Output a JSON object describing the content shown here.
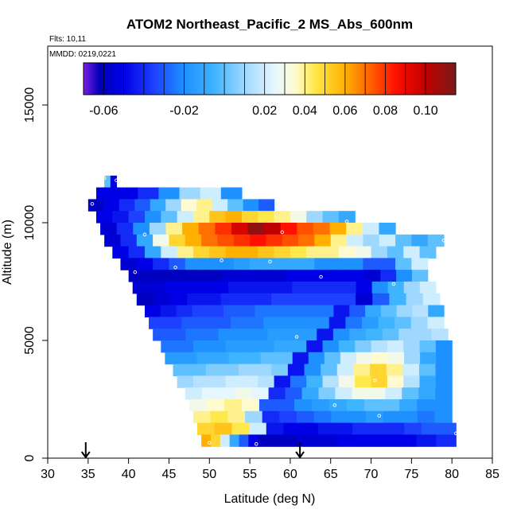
{
  "chart_data": {
    "type": "heatmap",
    "title": "ATOM2 Northeast_Pacific_2 MS_Abs_600nm",
    "flights_label": "Flts: 10,11",
    "dates_label": "MMDD: 0219,0221",
    "xlabel": "Latitude (deg N)",
    "ylabel": "Altitude (m)",
    "xlim": [
      30,
      85
    ],
    "ylim": [
      0,
      17500
    ],
    "x_ticks": [
      30,
      35,
      40,
      45,
      50,
      55,
      60,
      65,
      70,
      75,
      80,
      85
    ],
    "y_ticks": [
      0,
      5000,
      10000,
      15000
    ],
    "grid": false,
    "colorbar": {
      "range": [
        -0.07,
        0.115
      ],
      "tick_values": [
        -0.06,
        -0.02,
        0.02,
        0.04,
        0.06,
        0.08,
        0.1
      ],
      "tick_labels": [
        "-0.06",
        "-0.02",
        "0.02",
        "0.04",
        "0.06",
        "0.08",
        "0.10"
      ],
      "divider_values": [
        -0.05,
        -0.04,
        -0.03,
        -0.01,
        0.0,
        0.01,
        0.03,
        0.05,
        0.07,
        0.09
      ],
      "colors": [
        "#7a1fe0",
        "#0000b8",
        "#0000e6",
        "#1e40ff",
        "#1e90ff",
        "#3fb4ff",
        "#9fd8ff",
        "#e6f7ff",
        "#fffbd0",
        "#ffe84a",
        "#ffb000",
        "#ff7000",
        "#ff1000",
        "#c00000",
        "#7a1a1a"
      ],
      "color_stops": [
        -0.07,
        -0.062,
        -0.05,
        -0.035,
        -0.02,
        -0.005,
        0.01,
        0.025,
        0.035,
        0.045,
        0.06,
        0.07,
        0.085,
        0.1,
        0.115
      ],
      "placement": "top"
    },
    "arrows_x": [
      34.7,
      61.2
    ],
    "flight_legs": [
      {
        "x0": 37.0,
        "x1": 38.5,
        "y0": 11500,
        "y1": 12000,
        "values": [
          0.0,
          -0.05
        ]
      },
      {
        "x0": 36.0,
        "x1": 54.0,
        "y0": 11000,
        "y1": 11500,
        "values": [
          -0.05,
          -0.05,
          -0.04,
          -0.02,
          0.01,
          0.02,
          -0.02
        ]
      },
      {
        "x0": 35.0,
        "x1": 58.0,
        "y0": 10500,
        "y1": 11000,
        "values": [
          -0.06,
          -0.05,
          -0.04,
          -0.03,
          -0.01,
          0.01,
          0.035,
          0.04,
          0.02,
          0.0,
          -0.02,
          -0.03
        ]
      },
      {
        "x0": 36.0,
        "x1": 68.0,
        "y0": 10000,
        "y1": 10500,
        "values": [
          -0.05,
          -0.045,
          -0.035,
          -0.02,
          0.0,
          0.02,
          0.04,
          0.055,
          0.06,
          0.05,
          0.045,
          0.04,
          0.03,
          0.01,
          0.0,
          -0.01
        ]
      },
      {
        "x0": 36.5,
        "x1": 73.0,
        "y0": 9500,
        "y1": 10000,
        "values": [
          -0.055,
          -0.04,
          -0.02,
          0.01,
          0.04,
          0.06,
          0.07,
          0.08,
          0.095,
          0.11,
          0.1,
          0.085,
          0.075,
          0.07,
          0.06,
          0.04,
          0.02,
          -0.01
        ]
      },
      {
        "x0": 37.0,
        "x1": 79.0,
        "y0": 9000,
        "y1": 9500,
        "values": [
          -0.055,
          -0.04,
          -0.01,
          0.03,
          0.05,
          0.06,
          0.07,
          0.075,
          0.08,
          0.085,
          0.08,
          0.075,
          0.07,
          0.06,
          0.04,
          0.02,
          0.01,
          0.02,
          0.0,
          -0.01,
          0.0
        ]
      },
      {
        "x0": 38.0,
        "x1": 78.0,
        "y0": 8500,
        "y1": 9000,
        "values": [
          -0.05,
          -0.04,
          -0.01,
          0.02,
          0.04,
          0.05,
          0.055,
          0.06,
          0.06,
          0.055,
          0.05,
          0.045,
          0.04,
          0.04,
          0.035,
          0.03,
          0.01,
          0.0,
          0.02,
          0.0
        ]
      },
      {
        "x0": 39.0,
        "x1": 77.0,
        "y0": 8000,
        "y1": 8500,
        "values": [
          -0.055,
          -0.05,
          -0.04,
          -0.03,
          -0.02,
          -0.02,
          -0.02,
          -0.015,
          -0.01,
          -0.01,
          -0.01,
          -0.01,
          -0.02,
          -0.02,
          -0.02,
          -0.03,
          -0.03,
          0.0,
          0.02
        ]
      },
      {
        "x0": 40.0,
        "x1": 77.0,
        "y0": 7500,
        "y1": 8000,
        "values": [
          -0.06,
          -0.06,
          -0.06,
          -0.06,
          -0.06,
          -0.06,
          -0.055,
          -0.055,
          -0.055,
          -0.055,
          -0.05,
          -0.05,
          -0.05,
          -0.05,
          -0.05,
          -0.055,
          -0.04,
          -0.02,
          0.0
        ]
      },
      {
        "x0": 40.5,
        "x1": 78.0,
        "y0": 7000,
        "y1": 7500,
        "values": [
          -0.055,
          -0.055,
          -0.05,
          -0.05,
          -0.05,
          -0.05,
          -0.045,
          -0.045,
          -0.045,
          -0.045,
          -0.04,
          -0.04,
          -0.04,
          -0.04,
          -0.05,
          -0.02,
          -0.005,
          0.01,
          0.02
        ]
      },
      {
        "x0": 41.0,
        "x1": 78.5,
        "y0": 6500,
        "y1": 7000,
        "values": [
          -0.06,
          -0.055,
          -0.05,
          -0.045,
          -0.045,
          -0.04,
          -0.04,
          -0.04,
          -0.035,
          -0.035,
          -0.035,
          -0.035,
          -0.035,
          -0.055,
          -0.03,
          -0.005,
          0.01,
          0.02
        ]
      },
      {
        "x0": 42.0,
        "x1": 79.0,
        "y0": 6000,
        "y1": 6500,
        "values": [
          -0.05,
          -0.045,
          -0.04,
          -0.035,
          -0.035,
          -0.03,
          -0.03,
          -0.025,
          -0.025,
          -0.025,
          -0.025,
          -0.025,
          -0.045,
          -0.03,
          -0.01,
          0.0,
          0.01,
          0.015,
          -0.01
        ]
      },
      {
        "x0": 42.5,
        "x1": 79.0,
        "y0": 5500,
        "y1": 6000,
        "values": [
          -0.035,
          -0.035,
          -0.03,
          -0.03,
          -0.03,
          -0.025,
          -0.025,
          -0.02,
          -0.02,
          -0.02,
          -0.02,
          -0.045,
          -0.025,
          -0.015,
          -0.005,
          0.0,
          0.01,
          0.02
        ]
      },
      {
        "x0": 43.0,
        "x1": 79.5,
        "y0": 5000,
        "y1": 5500,
        "values": [
          -0.03,
          -0.03,
          -0.025,
          -0.025,
          -0.02,
          -0.02,
          -0.02,
          -0.015,
          -0.015,
          -0.015,
          -0.045,
          -0.02,
          -0.01,
          -0.005,
          0.0,
          0.01,
          0.01,
          0.015
        ]
      },
      {
        "x0": 44.0,
        "x1": 80.0,
        "y0": 4500,
        "y1": 5000,
        "values": [
          -0.025,
          -0.025,
          -0.02,
          -0.02,
          -0.015,
          -0.015,
          -0.015,
          -0.01,
          -0.01,
          -0.045,
          -0.02,
          -0.005,
          0.005,
          0.015,
          0.02,
          0.01,
          0.0,
          -0.02
        ]
      },
      {
        "x0": 44.5,
        "x1": 80.0,
        "y0": 4000,
        "y1": 4500,
        "values": [
          -0.015,
          -0.015,
          -0.01,
          -0.01,
          -0.005,
          -0.005,
          0.0,
          0.0,
          -0.045,
          -0.02,
          0.0,
          0.02,
          0.03,
          0.035,
          0.03,
          0.01,
          -0.01,
          -0.02
        ]
      },
      {
        "x0": 45.5,
        "x1": 80.0,
        "y0": 3500,
        "y1": 4000,
        "values": [
          0.0,
          0.0,
          0.005,
          0.005,
          0.01,
          0.01,
          0.005,
          -0.045,
          -0.02,
          0.0,
          0.02,
          0.04,
          0.05,
          0.04,
          0.02,
          0.0,
          -0.02
        ]
      },
      {
        "x0": 46.0,
        "x1": 80.0,
        "y0": 3000,
        "y1": 3500,
        "values": [
          0.01,
          0.015,
          0.015,
          0.02,
          0.02,
          0.015,
          -0.045,
          -0.025,
          -0.005,
          0.015,
          0.03,
          0.045,
          0.05,
          0.035,
          0.015,
          -0.01,
          -0.02
        ]
      },
      {
        "x0": 47.0,
        "x1": 80.0,
        "y0": 2500,
        "y1": 3000,
        "values": [
          0.02,
          0.025,
          0.025,
          0.03,
          0.025,
          -0.04,
          -0.03,
          -0.01,
          0.005,
          0.02,
          0.03,
          0.03,
          0.02,
          0.0,
          -0.01,
          -0.02
        ]
      },
      {
        "x0": 47.5,
        "x1": 80.0,
        "y0": 2000,
        "y1": 2500,
        "values": [
          0.03,
          0.035,
          0.04,
          0.035,
          -0.03,
          -0.03,
          -0.02,
          -0.015,
          -0.01,
          -0.005,
          0.0,
          0.0,
          -0.01,
          -0.02,
          -0.02
        ]
      },
      {
        "x0": 48.0,
        "x1": 80.0,
        "y0": 1500,
        "y1": 2000,
        "values": [
          0.04,
          0.045,
          0.04,
          0.01,
          -0.04,
          -0.035,
          -0.03,
          -0.025,
          -0.02,
          -0.02,
          -0.015,
          -0.02,
          -0.02,
          -0.025,
          -0.02
        ]
      },
      {
        "x0": 48.5,
        "x1": 80.5,
        "y0": 1000,
        "y1": 1500,
        "values": [
          0.05,
          0.055,
          0.045,
          0.02,
          -0.045,
          -0.05,
          -0.05,
          -0.045,
          -0.045,
          -0.04,
          -0.04,
          -0.04,
          -0.035,
          -0.03,
          -0.03
        ]
      },
      {
        "x0": 49.0,
        "x1": 56.0,
        "y0": 500,
        "y1": 1000,
        "values": [
          0.06,
          0.05,
          0.02,
          -0.01,
          -0.03,
          -0.05
        ]
      },
      {
        "x0": 56.0,
        "x1": 80.5,
        "y0": 500,
        "y1": 1000,
        "values": [
          -0.06,
          -0.06,
          -0.055,
          -0.055,
          -0.05,
          -0.05,
          -0.05,
          -0.05,
          -0.045,
          -0.04
        ]
      }
    ],
    "markers": [
      {
        "x": 37.0,
        "y": 11900
      },
      {
        "x": 38.5,
        "y": 11800
      },
      {
        "x": 39.3,
        "y": 11600
      },
      {
        "x": 35.5,
        "y": 10800
      },
      {
        "x": 42.0,
        "y": 9500
      },
      {
        "x": 59.0,
        "y": 9600
      },
      {
        "x": 67.0,
        "y": 10050
      },
      {
        "x": 79.0,
        "y": 9250
      },
      {
        "x": 40.8,
        "y": 7900
      },
      {
        "x": 45.8,
        "y": 8100
      },
      {
        "x": 51.5,
        "y": 8400
      },
      {
        "x": 57.5,
        "y": 8350
      },
      {
        "x": 63.8,
        "y": 7700
      },
      {
        "x": 72.8,
        "y": 7400
      },
      {
        "x": 60.8,
        "y": 5150
      },
      {
        "x": 70.5,
        "y": 3300
      },
      {
        "x": 65.5,
        "y": 2250
      },
      {
        "x": 71.0,
        "y": 1800
      },
      {
        "x": 50.0,
        "y": 650
      },
      {
        "x": 55.8,
        "y": 600
      },
      {
        "x": 80.5,
        "y": 1050
      }
    ]
  }
}
